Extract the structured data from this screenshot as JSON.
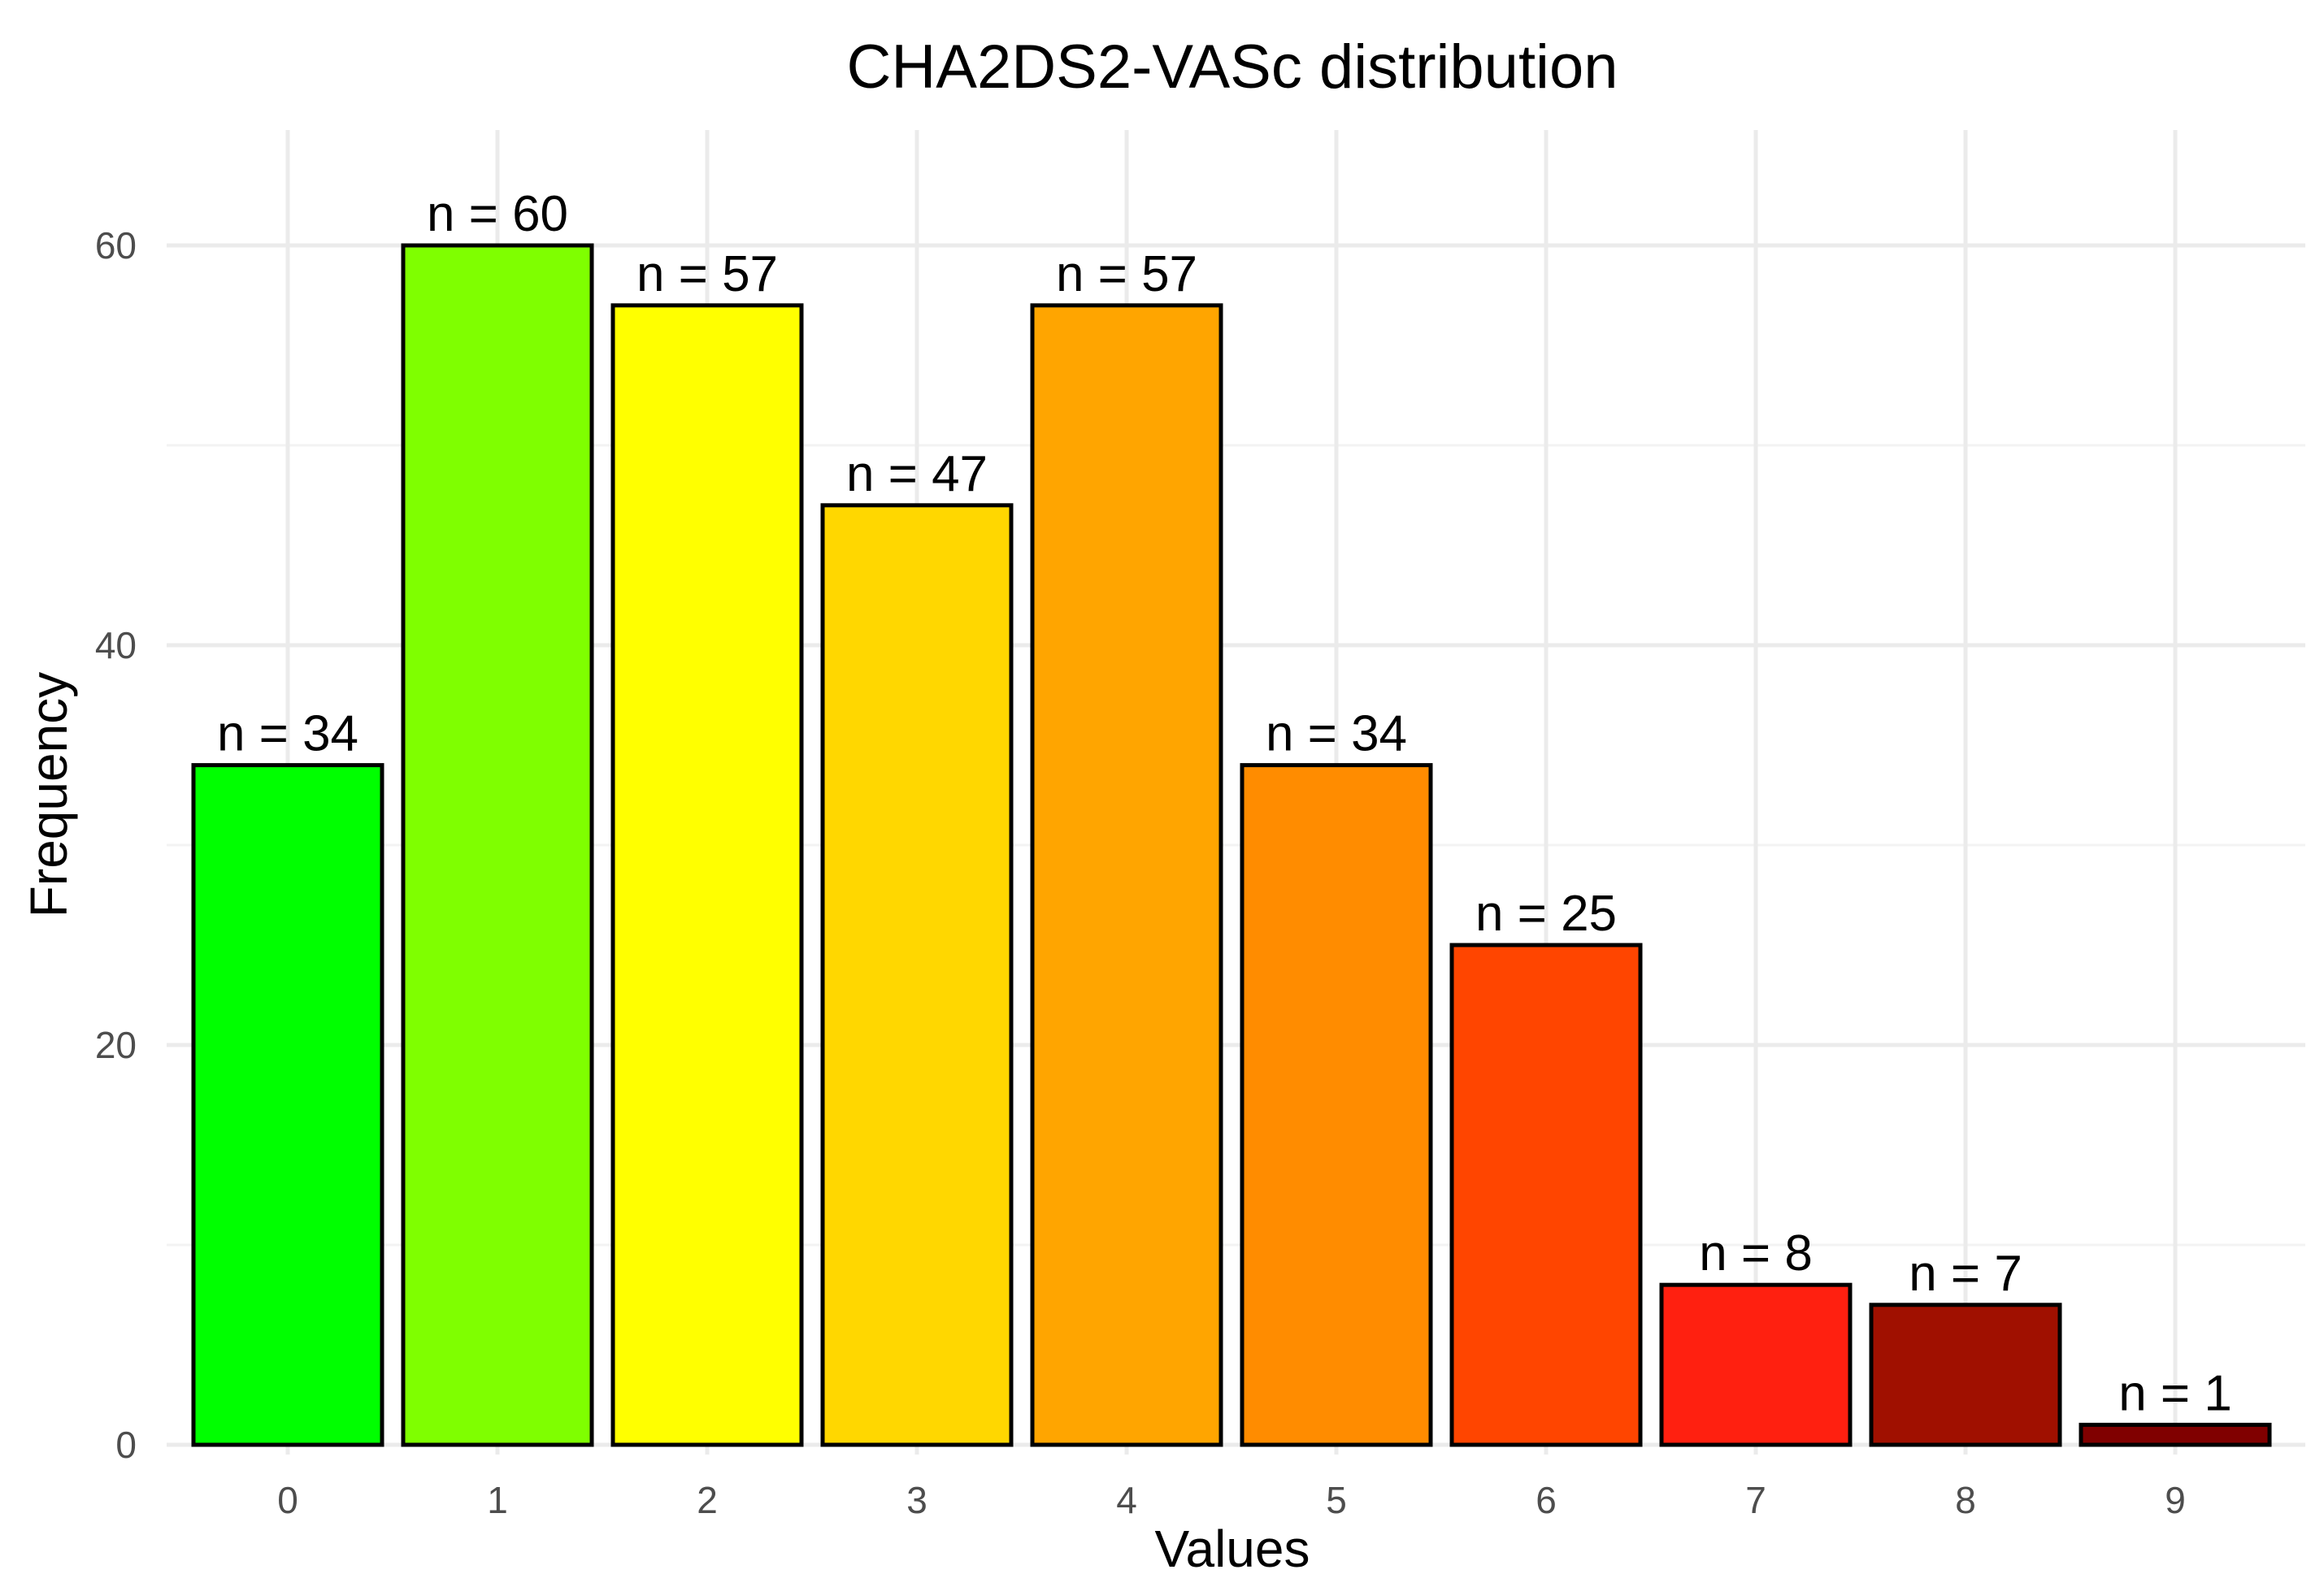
{
  "chart_data": {
    "type": "bar",
    "title": "CHA2DS2-VASc distribution",
    "xlabel": "Values",
    "ylabel": "Frequency",
    "categories": [
      "0",
      "1",
      "2",
      "3",
      "4",
      "5",
      "6",
      "7",
      "8",
      "9"
    ],
    "values": [
      34,
      60,
      57,
      47,
      57,
      34,
      25,
      8,
      7,
      1
    ],
    "data_labels": [
      "n = 34",
      "n = 60",
      "n = 57",
      "n = 47",
      "n = 57",
      "n = 34",
      "n = 25",
      "n = 8",
      "n = 7",
      "n = 1"
    ],
    "colors": [
      "#00FF00",
      "#7FFF00",
      "#FFFF00",
      "#FFD700",
      "#FFA500",
      "#FF8C00",
      "#FF4500",
      "#FF2010",
      "#A01000",
      "#800000"
    ],
    "ylim": [
      0,
      66
    ],
    "yticks": [
      0,
      20,
      40,
      60
    ],
    "yticks_labels": [
      "0",
      "20",
      "40",
      "60"
    ],
    "y_minor_ticks": [
      10,
      30,
      50
    ],
    "grid": true,
    "legend": "none"
  }
}
